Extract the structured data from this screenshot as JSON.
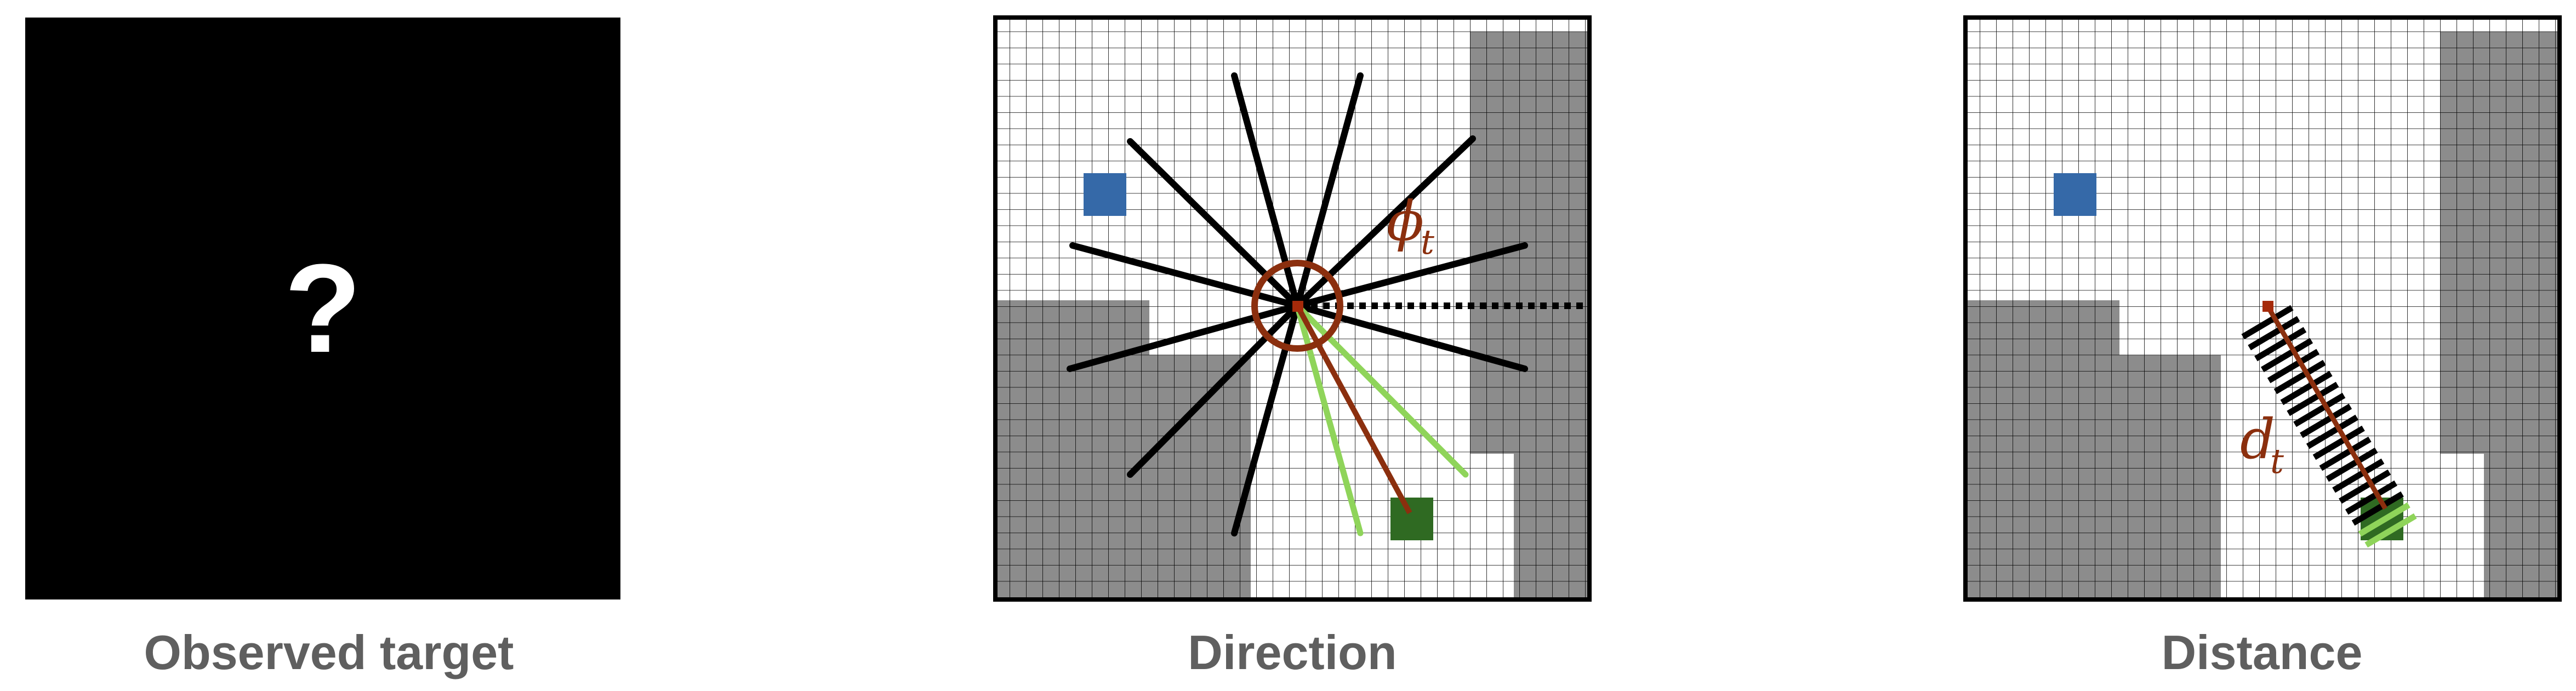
{
  "panels": {
    "observed": {
      "caption": "Observed target",
      "symbol": "?"
    },
    "direction": {
      "caption": "Direction",
      "angle_label": "ϕ",
      "angle_subscript": "t"
    },
    "distance": {
      "caption": "Distance",
      "distance_label": "d",
      "distance_subscript": "t"
    }
  },
  "colors": {
    "background_black": "#000000",
    "obstacle_gray": "#8c8c8c",
    "grid_line": "#000000",
    "agent_red": "#a52a0a",
    "target_green": "#2f6a22",
    "blue_marker": "#3569a8",
    "ray_green": "#8fd45a",
    "ray_black": "#000000",
    "distance_line": "#8b2f0e"
  },
  "grid": {
    "columns": 36,
    "rows": 36
  }
}
